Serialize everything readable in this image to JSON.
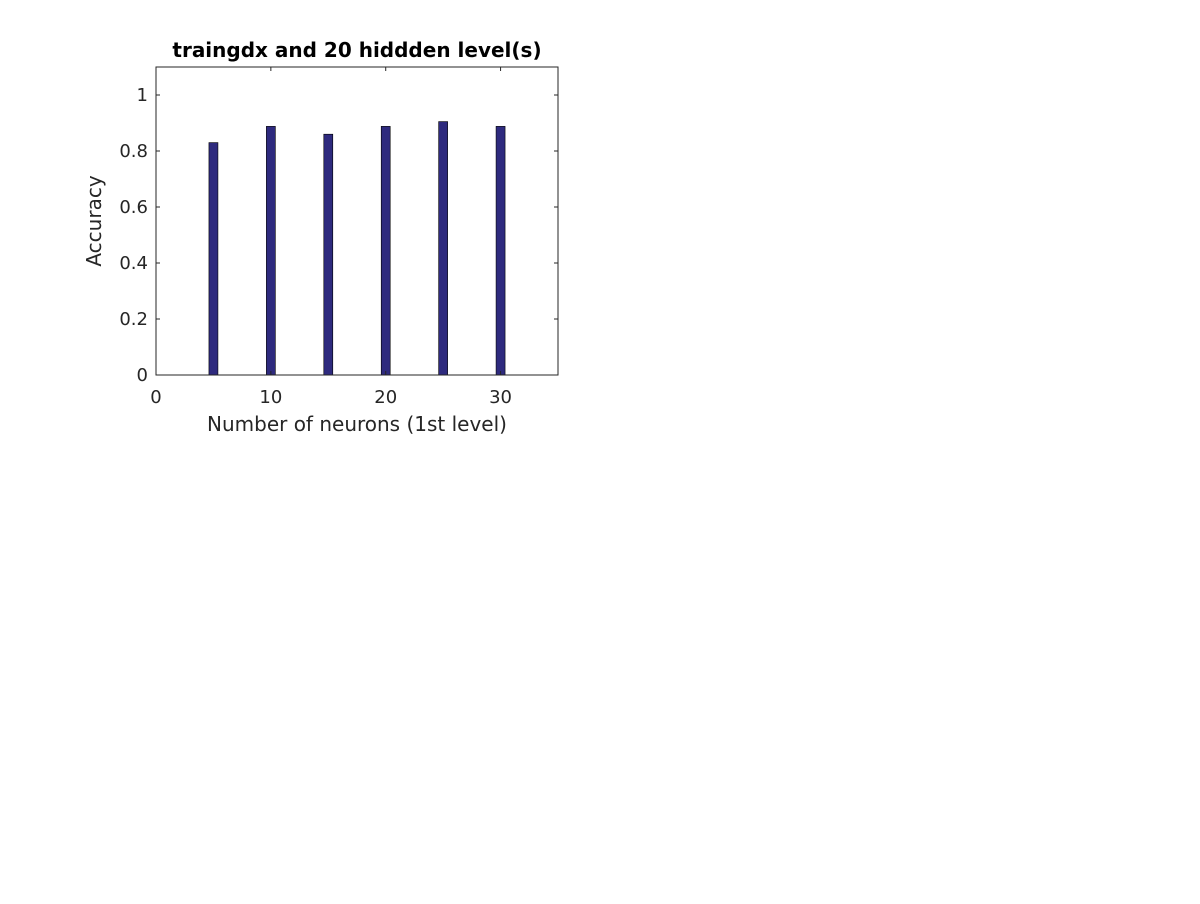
{
  "chart_data": {
    "type": "bar",
    "title": "traingdx and 20 hiddden level(s)",
    "xlabel": "Number of neurons (1st level)",
    "ylabel": "Accuracy",
    "x": [
      5,
      10,
      15,
      20,
      25,
      30
    ],
    "values": [
      0.83,
      0.888,
      0.86,
      0.888,
      0.905,
      0.888
    ],
    "xlim": [
      0,
      35
    ],
    "ylim": [
      0,
      1.1
    ],
    "xticks": [
      0,
      10,
      20,
      30
    ],
    "xtick_labels": [
      "0",
      "10",
      "20",
      "30"
    ],
    "yticks": [
      0,
      0.2,
      0.4,
      0.6,
      0.8,
      1
    ],
    "ytick_labels": [
      "0",
      "0.2",
      "0.4",
      "0.6",
      "0.8",
      "1"
    ],
    "bar_color": "#2e2a7e",
    "grid": false,
    "legend": "none"
  }
}
